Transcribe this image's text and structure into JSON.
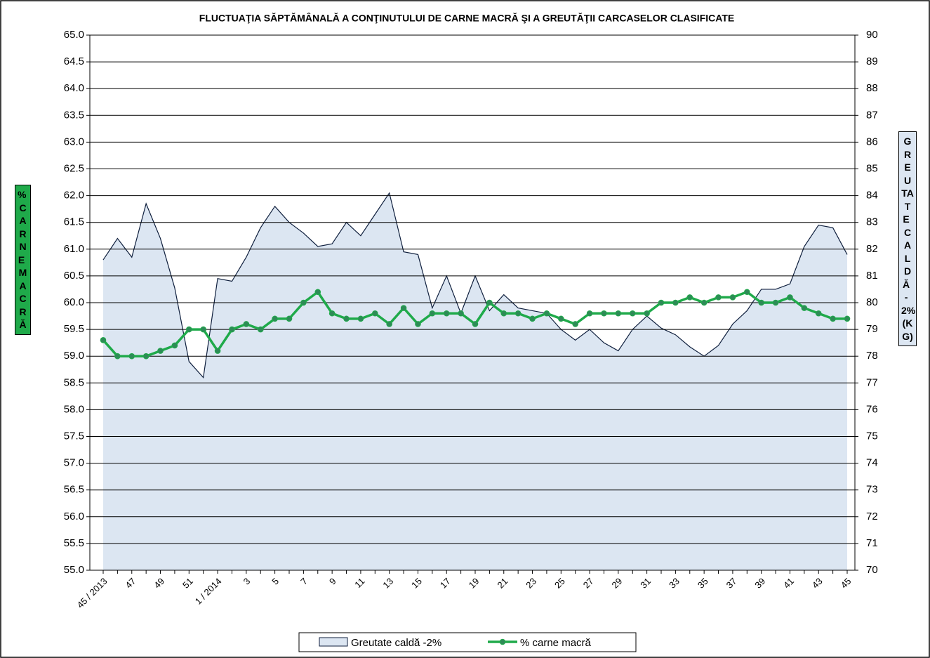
{
  "chart_data": {
    "type": "line",
    "title": "FLUCTUAŢIA SĂPTĂMÂNALĂ   A CONŢINUTULUI DE CARNE MACRĂ ŞI A GREUTĂŢII CARCASELOR CLASIFICATE",
    "y_label": "% CARNE MACRĂ",
    "y2_label": "GREUTATE CALDĂ - 2% (KG)",
    "categories": [
      "45 / 2013",
      null,
      "47",
      null,
      "49",
      null,
      "51",
      null,
      "1 / 2014",
      null,
      "3",
      null,
      "5",
      null,
      "7",
      null,
      "9",
      null,
      "11",
      null,
      "13",
      null,
      "15",
      null,
      "17",
      null,
      "19",
      null,
      "21",
      null,
      "23",
      null,
      "25",
      null,
      "27",
      null,
      "29",
      null,
      "31",
      null,
      "33",
      null,
      "35",
      null,
      "37",
      null,
      "39",
      null,
      "41",
      null,
      "43",
      null,
      "45"
    ],
    "series": [
      {
        "name": "Greutate caldă -2%",
        "type": "area",
        "axis": "y2",
        "color": "#dce6f2",
        "line_color": "#0f1f3d",
        "values": [
          81.6,
          82.4,
          81.7,
          83.7,
          82.4,
          80.55,
          77.8,
          77.2,
          80.9,
          80.8,
          81.7,
          82.8,
          83.6,
          83.0,
          82.6,
          82.1,
          82.2,
          83.0,
          82.5,
          83.3,
          84.1,
          81.9,
          81.8,
          79.8,
          81.0,
          79.6,
          81.0,
          79.7,
          80.3,
          79.8,
          79.7,
          79.6,
          79.0,
          78.6,
          79.0,
          78.5,
          78.2,
          79.0,
          79.5,
          79.05,
          78.8,
          78.35,
          78.0,
          78.4,
          79.2,
          79.7,
          80.5,
          80.5,
          80.7,
          82.1,
          82.9,
          82.8,
          81.8
        ]
      },
      {
        "name": "% carne macră",
        "type": "line",
        "color": "#1faa4a",
        "marker_color": "#2e8b57",
        "values": [
          59.3,
          59.0,
          59.0,
          59.0,
          59.1,
          59.2,
          59.5,
          59.5,
          59.1,
          59.5,
          59.6,
          59.5,
          59.7,
          59.7,
          60.0,
          60.2,
          59.8,
          59.7,
          59.7,
          59.8,
          59.6,
          59.9,
          59.6,
          59.8,
          59.8,
          59.8,
          59.6,
          60.0,
          59.8,
          59.8,
          59.7,
          59.8,
          59.7,
          59.6,
          59.8,
          59.8,
          59.8,
          59.8,
          59.8,
          60.0,
          60.0,
          60.1,
          60.0,
          60.1,
          60.1,
          60.2,
          60.0,
          60.0,
          60.1,
          59.9,
          59.8,
          59.7,
          59.7
        ]
      }
    ],
    "ylim": [
      55,
      65
    ],
    "yticks": [
      {
        "value": 55,
        "label": "55.0"
      },
      55.5,
      {
        "value": 56,
        "label": "56.0"
      },
      56.5,
      {
        "value": 57,
        "label": "57.0"
      },
      57.5,
      {
        "value": 58,
        "label": "58.0"
      },
      58.5,
      {
        "value": 59,
        "label": "59.0"
      },
      59.5,
      {
        "value": 60,
        "label": "60.0"
      },
      60.5,
      {
        "value": 61,
        "label": "61.0"
      },
      61.5,
      {
        "value": 62,
        "label": "62.0"
      },
      62.5,
      {
        "value": 63,
        "label": "63.0"
      },
      63.5,
      {
        "value": 64,
        "label": "64.0"
      },
      64.5,
      {
        "value": 65,
        "label": "65.0"
      }
    ],
    "y2lim": [
      70,
      90
    ],
    "y2ticks": [
      70,
      71,
      72,
      73,
      74,
      75,
      76,
      77,
      78,
      79,
      80,
      81,
      82,
      83,
      84,
      85,
      86,
      87,
      88,
      89,
      90
    ],
    "grid": true,
    "legend": "bottom"
  }
}
